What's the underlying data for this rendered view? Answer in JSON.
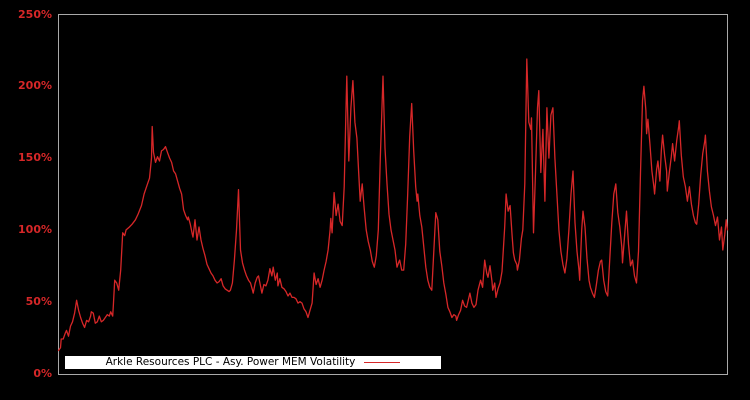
{
  "chart_data": {
    "type": "line",
    "title": "Arkle Resources PLC - Asy. Power MEM Volatility",
    "legend": {
      "entries": [
        {
          "label": "Arkle Resources PLC - Asy. Power MEM Volatility",
          "color": "#d62728"
        }
      ],
      "position": "bottom-inside"
    },
    "xlabel": "",
    "ylabel": "",
    "ylim": [
      0,
      250
    ],
    "grid": false,
    "x_tick_labels": [],
    "y_ticks": [
      {
        "value": 0,
        "label": "0%"
      },
      {
        "value": 50,
        "label": "50%"
      },
      {
        "value": 100,
        "label": "100%"
      },
      {
        "value": 150,
        "label": "150%"
      },
      {
        "value": 200,
        "label": "200%"
      },
      {
        "value": 250,
        "label": "250%"
      }
    ],
    "colors": {
      "line": "#d62728",
      "tick_labels": "#d62728",
      "background": "#000000",
      "plot_border": "#a9a9a9",
      "legend_background": "#ffffff",
      "legend_text": "#000000"
    },
    "points_format": "flat pairs [t, v]: t = position 0-1000 along unlabeled time axis, v = volatility in percent",
    "points": [
      0,
      16,
      3,
      18,
      4,
      24,
      7,
      24,
      10,
      28,
      12,
      30,
      15,
      26,
      18,
      33,
      21,
      36,
      24,
      42,
      27,
      51,
      30,
      44,
      33,
      39,
      36,
      35,
      39,
      32,
      42,
      37,
      45,
      36,
      48,
      40,
      49,
      43,
      52,
      42,
      55,
      35,
      58,
      36,
      61,
      40,
      64,
      36,
      67,
      37,
      70,
      39,
      73,
      41,
      76,
      40,
      78,
      43,
      81,
      40,
      82,
      48,
      84,
      65,
      87,
      63,
      90,
      58,
      91,
      63,
      93,
      72,
      96,
      98,
      99,
      96,
      101,
      100,
      106,
      102,
      110,
      104,
      115,
      107,
      119,
      111,
      124,
      117,
      128,
      125,
      133,
      132,
      136,
      136,
      139,
      150,
      140,
      172,
      142,
      154,
      145,
      147,
      148,
      151,
      151,
      148,
      154,
      155,
      157,
      156,
      160,
      158,
      163,
      154,
      166,
      150,
      169,
      147,
      172,
      141,
      175,
      139,
      178,
      134,
      181,
      129,
      184,
      125,
      187,
      114,
      190,
      110,
      193,
      107,
      194,
      109,
      197,
      104,
      200,
      97,
      201,
      95,
      204,
      107,
      207,
      93,
      210,
      102,
      213,
      93,
      216,
      87,
      219,
      82,
      222,
      76,
      225,
      73,
      228,
      70,
      231,
      68,
      234,
      65,
      237,
      63,
      240,
      64,
      243,
      66,
      246,
      61,
      249,
      59,
      252,
      58,
      255,
      57,
      257,
      58,
      260,
      63,
      263,
      79,
      266,
      100,
      269,
      128,
      272,
      86,
      275,
      77,
      278,
      72,
      281,
      68,
      284,
      65,
      287,
      63,
      290,
      58,
      291,
      56,
      294,
      63,
      297,
      67,
      299,
      68,
      301,
      63,
      304,
      56,
      307,
      62,
      310,
      61,
      313,
      65,
      316,
      73,
      319,
      68,
      321,
      74,
      324,
      65,
      327,
      70,
      328,
      61,
      331,
      66,
      334,
      60,
      337,
      59,
      340,
      57,
      343,
      54,
      346,
      56,
      349,
      53,
      352,
      53,
      355,
      52,
      358,
      49,
      361,
      50,
      364,
      49,
      367,
      45,
      370,
      43,
      373,
      39,
      376,
      44,
      379,
      49,
      382,
      70,
      385,
      62,
      388,
      66,
      391,
      60,
      394,
      65,
      397,
      72,
      400,
      78,
      403,
      86,
      406,
      100,
      407,
      108,
      409,
      98,
      412,
      126,
      415,
      110,
      418,
      118,
      421,
      106,
      424,
      103,
      427,
      130,
      430,
      190,
      431,
      207,
      433,
      165,
      434,
      148,
      437,
      185,
      440,
      204,
      443,
      175,
      446,
      164,
      449,
      137,
      451,
      120,
      454,
      132,
      457,
      115,
      460,
      100,
      463,
      92,
      466,
      86,
      469,
      78,
      472,
      74,
      475,
      82,
      478,
      100,
      481,
      150,
      485,
      207,
      488,
      157,
      491,
      132,
      494,
      111,
      497,
      100,
      500,
      93,
      503,
      86,
      506,
      74,
      509,
      78,
      510,
      79,
      513,
      72,
      516,
      72,
      519,
      90,
      522,
      125,
      525,
      165,
      528,
      188,
      531,
      155,
      534,
      130,
      536,
      120,
      537,
      125,
      540,
      110,
      543,
      102,
      546,
      88,
      549,
      74,
      552,
      65,
      555,
      60,
      558,
      58,
      561,
      85,
      564,
      112,
      567,
      107,
      570,
      85,
      573,
      75,
      576,
      63,
      579,
      55,
      582,
      46,
      585,
      43,
      588,
      39,
      591,
      41,
      594,
      40,
      595,
      37,
      598,
      41,
      601,
      44,
      604,
      51,
      607,
      47,
      610,
      46,
      613,
      52,
      615,
      56,
      618,
      49,
      621,
      46,
      624,
      48,
      627,
      58,
      631,
      65,
      634,
      60,
      637,
      79,
      640,
      70,
      642,
      67,
      645,
      75,
      648,
      64,
      649,
      58,
      652,
      63,
      654,
      53,
      657,
      59,
      660,
      63,
      663,
      71,
      664,
      79,
      667,
      102,
      669,
      125,
      672,
      113,
      675,
      117,
      678,
      96,
      680,
      84,
      682,
      79,
      685,
      76,
      686,
      72,
      689,
      79,
      692,
      94,
      694,
      100,
      697,
      132,
      700,
      219,
      703,
      175,
      706,
      170,
      707,
      178,
      710,
      98,
      713,
      140,
      716,
      185,
      718,
      197,
      721,
      140,
      724,
      170,
      727,
      120,
      730,
      185,
      733,
      150,
      736,
      180,
      739,
      185,
      742,
      150,
      745,
      125,
      748,
      100,
      751,
      85,
      754,
      76,
      757,
      70,
      760,
      80,
      763,
      100,
      766,
      125,
      769,
      141,
      772,
      105,
      775,
      85,
      778,
      72,
      779,
      65,
      782,
      100,
      784,
      113,
      787,
      102,
      790,
      80,
      793,
      65,
      795,
      60,
      798,
      56,
      801,
      53,
      804,
      62,
      807,
      72,
      810,
      78,
      812,
      79,
      815,
      65,
      818,
      57,
      821,
      54,
      824,
      80,
      827,
      105,
      830,
      125,
      833,
      132,
      836,
      112,
      839,
      102,
      842,
      88,
      843,
      77,
      846,
      95,
      849,
      113,
      852,
      90,
      855,
      75,
      858,
      79,
      861,
      68,
      864,
      63,
      867,
      85,
      870,
      140,
      873,
      190,
      875,
      200,
      878,
      183,
      879,
      167,
      881,
      177,
      884,
      160,
      887,
      141,
      890,
      130,
      891,
      125,
      894,
      142,
      896,
      148,
      899,
      134,
      901,
      155,
      903,
      166,
      906,
      152,
      909,
      141,
      910,
      127,
      913,
      140,
      916,
      151,
      918,
      160,
      921,
      148,
      924,
      162,
      927,
      172,
      928,
      176,
      931,
      152,
      934,
      137,
      937,
      130,
      940,
      120,
      943,
      130,
      946,
      118,
      949,
      110,
      952,
      105,
      954,
      104,
      957,
      118,
      960,
      138,
      963,
      153,
      966,
      162,
      967,
      166,
      970,
      141,
      973,
      127,
      976,
      116,
      979,
      110,
      982,
      103,
      985,
      109,
      988,
      93,
      991,
      102,
      993,
      86,
      996,
      97,
      998,
      107,
      1000,
      100
    ]
  }
}
